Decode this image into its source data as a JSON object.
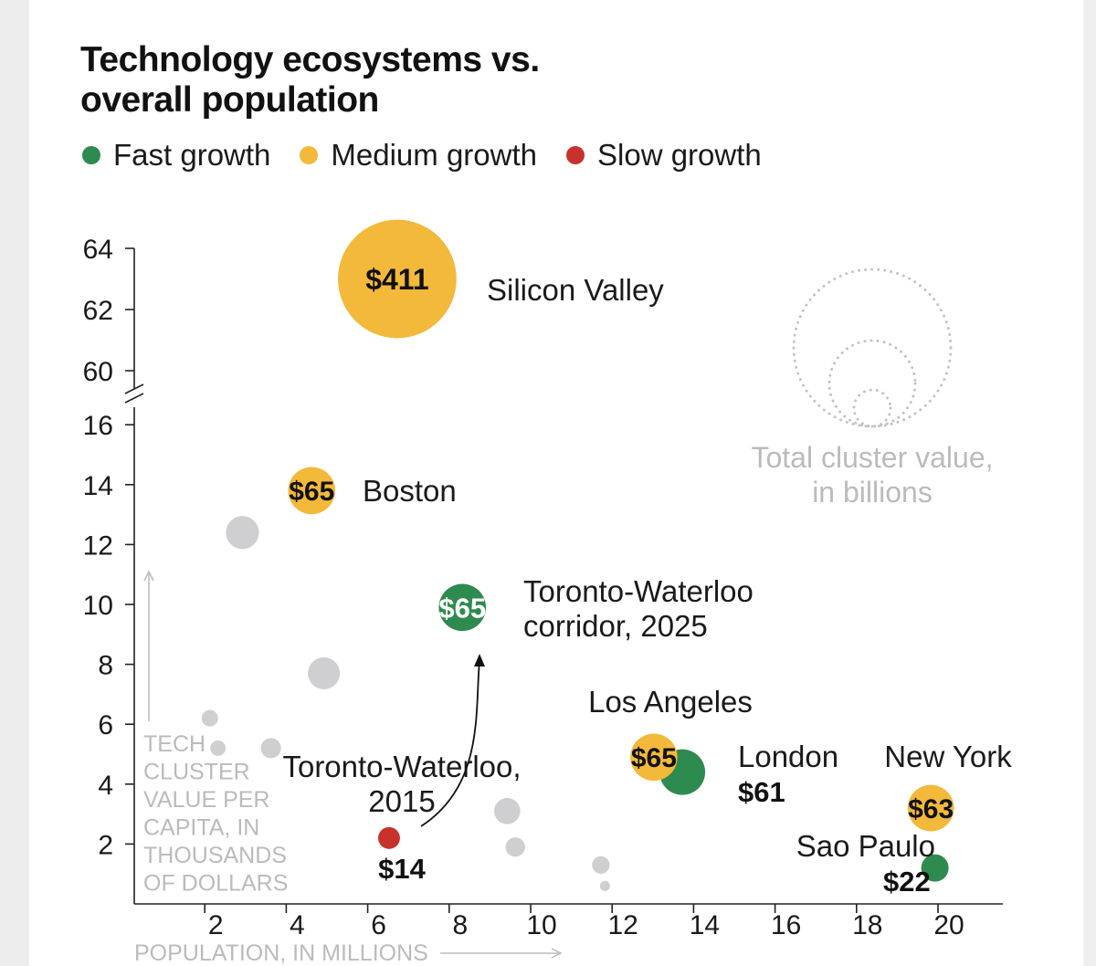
{
  "title": "Technology ecosystems vs. overall population",
  "legend": [
    {
      "label": "Fast growth",
      "color": "#2e8b4f"
    },
    {
      "label": "Medium growth",
      "color": "#f3b93b"
    },
    {
      "label": "Slow growth",
      "color": "#c8322c"
    }
  ],
  "colors": {
    "fast": "#2e8b4f",
    "medium": "#f3b93b",
    "slow": "#c8322c",
    "grey": "#cfcfd1",
    "axis": "#222222",
    "annotation": "#bbbbbb"
  },
  "chart_data": {
    "type": "scatter",
    "title": "Technology ecosystems vs. overall population",
    "xlabel": "POPULATION, IN MILLIONS",
    "ylabel": "TECH CLUSTER VALUE PER CAPITA, IN THOUSANDS OF DOLLARS",
    "ylabel_lines": [
      "TECH",
      "CLUSTER",
      "VALUE PER",
      "CAPITA, IN",
      "THOUSANDS",
      "OF DOLLARS"
    ],
    "xlim": [
      0,
      21
    ],
    "x_ticks": [
      2,
      4,
      6,
      8,
      10,
      12,
      14,
      16,
      18,
      20
    ],
    "y_segments": [
      {
        "range": [
          0,
          16.5
        ],
        "ticks": [
          2,
          4,
          6,
          8,
          10,
          12,
          14,
          16
        ]
      },
      {
        "range": [
          59.4,
          64
        ],
        "ticks": [
          60,
          62,
          64
        ]
      }
    ],
    "axis_break": true,
    "size_legend_title": "Total cluster value, in billions",
    "bubbles": [
      {
        "name": "Silicon Valley",
        "x": 6.5,
        "y": 63,
        "value_label": "$411",
        "value": 411,
        "growth": "medium"
      },
      {
        "name": "Boston",
        "x": 4.4,
        "y": 13.8,
        "value_label": "$65",
        "value": 65,
        "growth": "medium"
      },
      {
        "name": "Toronto-Waterloo corridor, 2025",
        "x": 8.1,
        "y": 9.9,
        "value_label": "$65",
        "value": 65,
        "growth": "fast"
      },
      {
        "name": "Toronto-Waterloo, 2015",
        "x": 6.3,
        "y": 2.2,
        "value_label": "$14",
        "value": 14,
        "growth": "slow"
      },
      {
        "name": "London",
        "x": 13.5,
        "y": 4.4,
        "value_label": "$61",
        "value": 61,
        "growth": "fast"
      },
      {
        "name": "Los Angeles",
        "x": 12.8,
        "y": 4.9,
        "value_label": "$65",
        "value": 65,
        "growth": "medium"
      },
      {
        "name": "New York",
        "x": 19.6,
        "y": 3.2,
        "value_label": "$63",
        "value": 63,
        "growth": "medium"
      },
      {
        "name": "Sao Paulo",
        "x": 19.7,
        "y": 1.2,
        "value_label": "$22",
        "value": 22,
        "growth": "fast"
      }
    ],
    "unlabeled_bubbles": [
      {
        "x": 2.7,
        "y": 12.4,
        "value": 32
      },
      {
        "x": 4.7,
        "y": 7.7,
        "value": 30
      },
      {
        "x": 1.9,
        "y": 6.2,
        "value": 8
      },
      {
        "x": 2.1,
        "y": 5.2,
        "value": 7
      },
      {
        "x": 3.4,
        "y": 5.2,
        "value": 12
      },
      {
        "x": 9.2,
        "y": 3.1,
        "value": 20
      },
      {
        "x": 9.4,
        "y": 1.9,
        "value": 11
      },
      {
        "x": 11.5,
        "y": 1.3,
        "value": 9
      },
      {
        "x": 11.6,
        "y": 0.6,
        "value": 3
      }
    ],
    "annotations": [
      {
        "text": "Toronto-Waterloo, 2015 → Toronto-Waterloo corridor, 2025",
        "type": "arrow"
      }
    ]
  }
}
